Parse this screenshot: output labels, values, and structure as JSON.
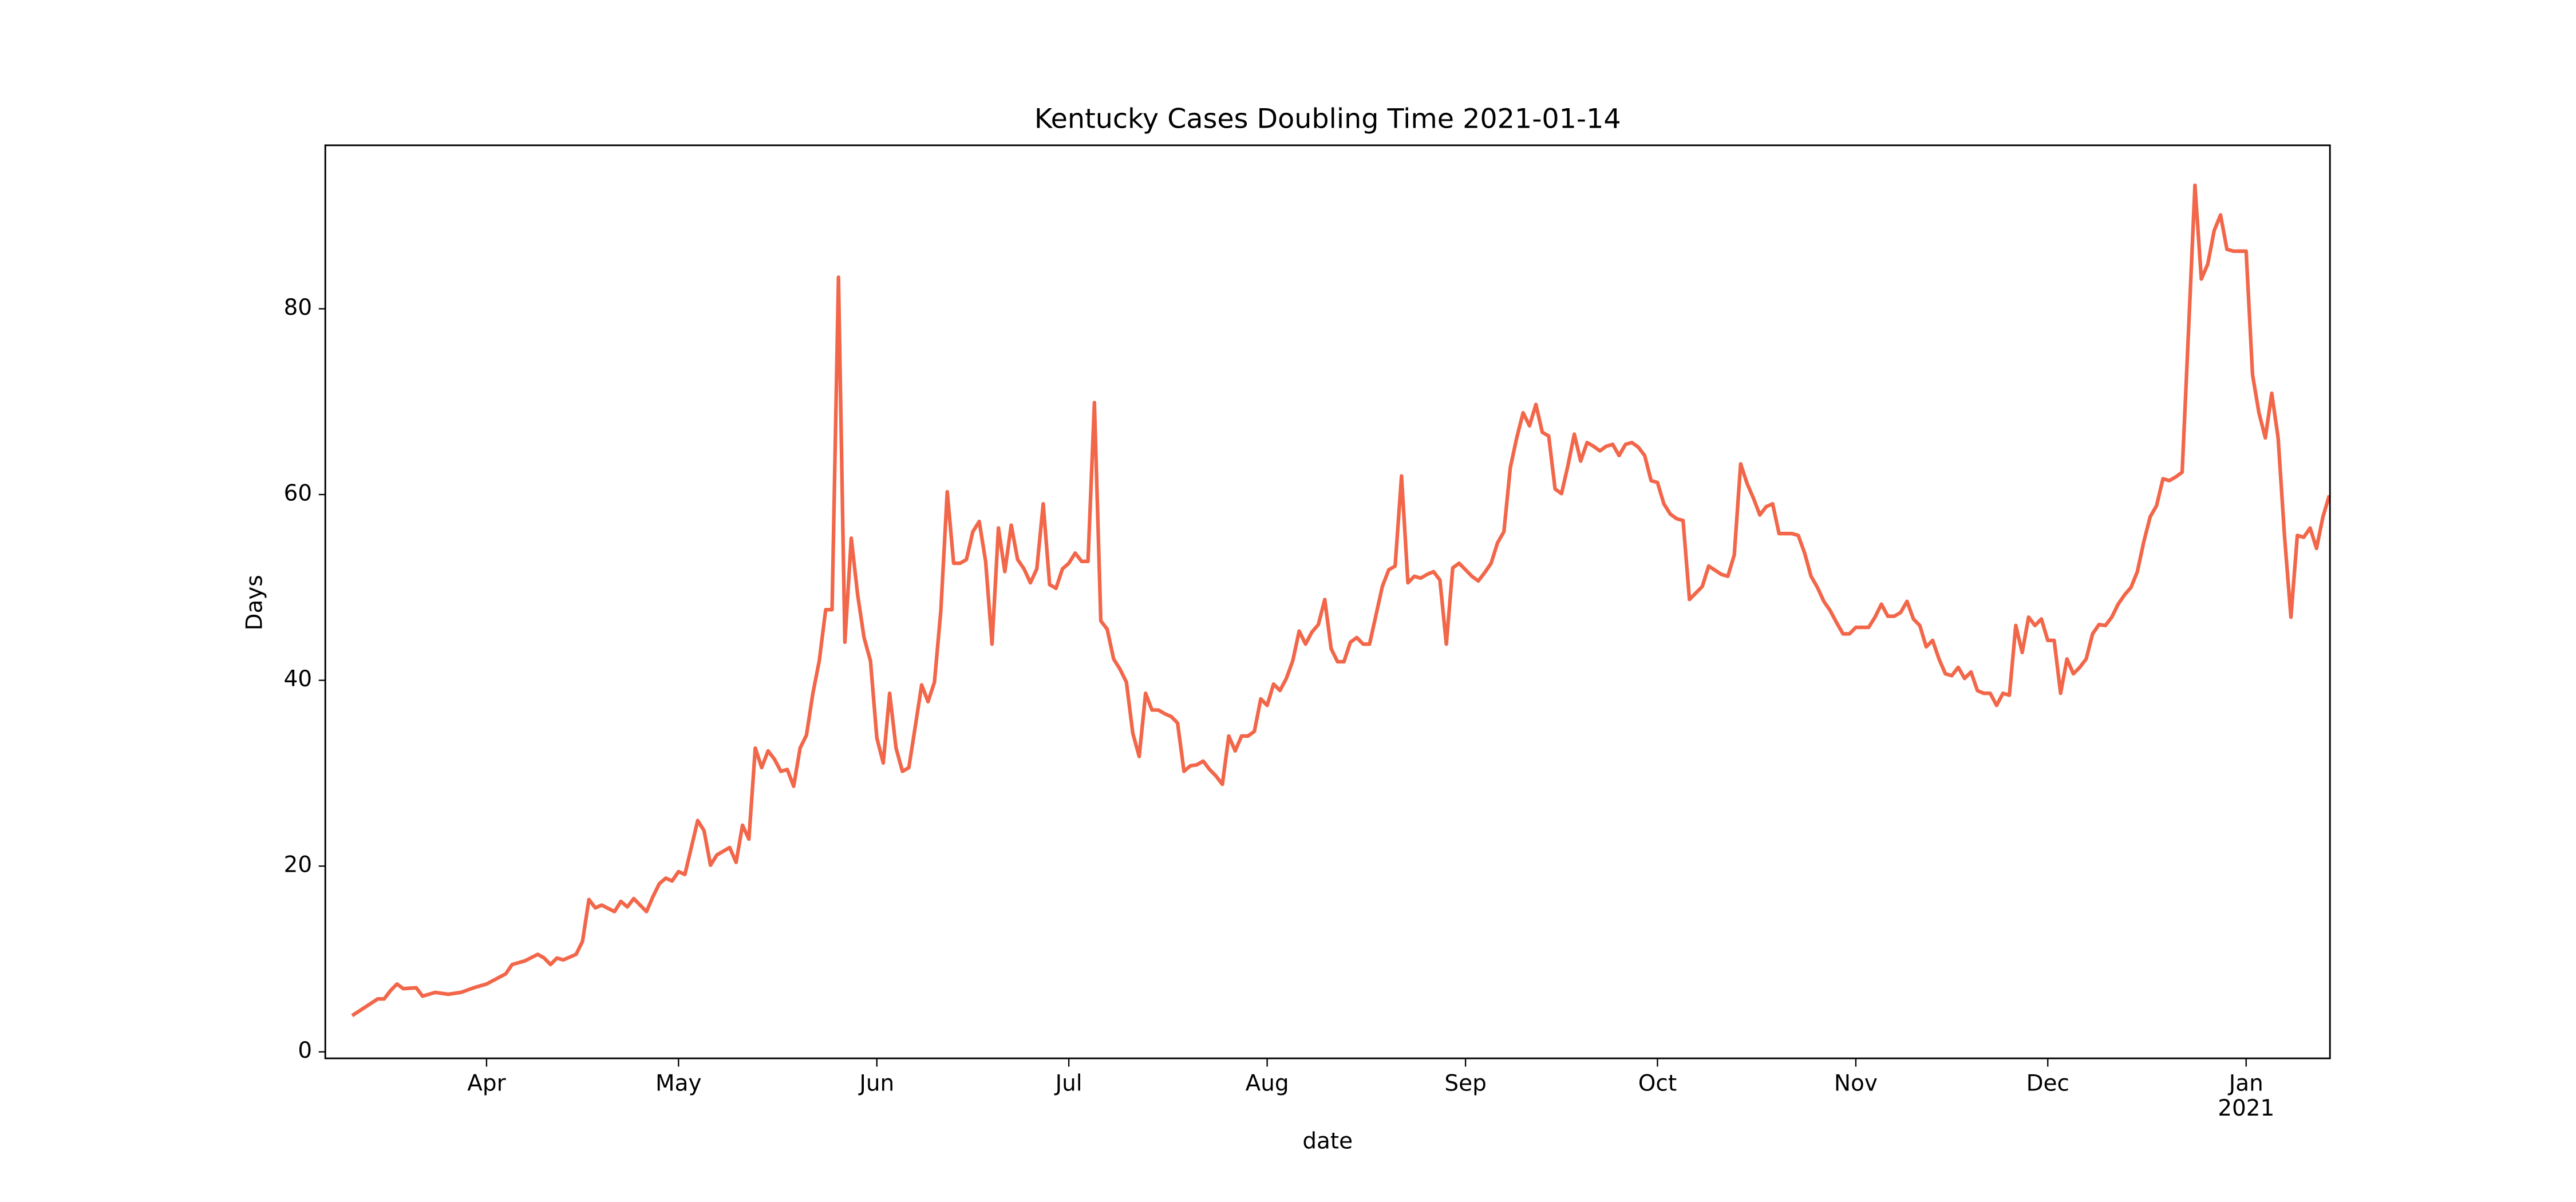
{
  "chart_data": {
    "type": "line",
    "title": "Kentucky Cases Doubling Time 2021-01-14",
    "xlabel": "date",
    "ylabel": "Days",
    "color": "#f26649",
    "grid": false,
    "xlim": [
      5.8,
      319.1
    ],
    "ylim": [
      -0.7,
      97.6
    ],
    "xticks": [
      {
        "value": 31,
        "label": "Apr"
      },
      {
        "value": 61,
        "label": "May"
      },
      {
        "value": 92,
        "label": "Jun"
      },
      {
        "value": 122,
        "label": "Jul"
      },
      {
        "value": 153,
        "label": "Aug"
      },
      {
        "value": 184,
        "label": "Sep"
      },
      {
        "value": 214,
        "label": "Oct"
      },
      {
        "value": 245,
        "label": "Nov"
      },
      {
        "value": 275,
        "label": "Dec"
      },
      {
        "value": 306,
        "label": "Jan"
      }
    ],
    "x_offset_label": "2021",
    "yticks": [
      0,
      20,
      40,
      60,
      80
    ],
    "x": [
      10,
      12,
      14,
      15,
      16,
      17,
      18,
      20,
      21,
      23,
      25,
      27,
      29,
      31,
      34,
      35,
      37,
      39,
      40,
      41,
      42,
      43,
      45,
      46,
      47,
      48,
      49,
      51,
      52,
      53,
      54,
      56,
      57,
      58,
      59,
      60,
      61,
      62,
      64,
      65,
      66,
      67,
      69,
      70,
      71,
      72,
      73,
      74,
      75,
      76,
      77,
      78,
      79,
      80,
      81,
      82,
      83,
      84,
      85,
      86,
      87,
      88,
      89,
      90,
      91,
      92,
      93,
      94,
      95,
      96,
      97,
      98,
      99,
      100,
      101,
      102,
      103,
      104,
      105,
      106,
      107,
      108,
      109,
      110,
      111,
      112,
      113,
      114,
      115,
      116,
      117,
      118,
      119,
      120,
      121,
      122,
      123,
      124,
      125,
      126,
      127,
      128,
      129,
      130,
      131,
      132,
      133,
      134,
      135,
      136,
      137,
      138,
      139,
      140,
      141,
      142,
      143,
      144,
      145,
      146,
      147,
      148,
      149,
      150,
      151,
      152,
      153,
      154,
      155,
      156,
      157,
      158,
      159,
      160,
      161,
      162,
      163,
      164,
      165,
      166,
      167,
      168,
      169,
      171,
      172,
      173,
      174,
      175,
      176,
      177,
      178,
      179,
      180,
      181,
      182,
      183,
      184,
      185,
      186,
      187,
      188,
      189,
      190,
      191,
      192,
      193,
      194,
      195,
      196,
      197,
      198,
      199,
      200,
      201,
      202,
      203,
      204,
      205,
      206,
      207,
      208,
      209,
      210,
      211,
      212,
      213,
      214,
      215,
      216,
      217,
      218,
      219,
      220,
      221,
      222,
      224,
      225,
      226,
      227,
      228,
      229,
      230,
      231,
      232,
      233,
      234,
      235,
      236,
      237,
      238,
      239,
      240,
      241,
      242,
      243,
      244,
      245,
      247,
      248,
      249,
      250,
      251,
      252,
      253,
      254,
      255,
      256,
      257,
      258,
      259,
      260,
      261,
      262,
      263,
      264,
      265,
      266,
      267,
      268,
      269,
      270,
      271,
      272,
      273,
      274,
      275,
      276,
      277,
      278,
      279,
      280,
      281,
      282,
      283,
      284,
      285,
      286,
      287,
      288,
      289,
      290,
      291,
      292,
      293,
      294,
      295,
      296,
      297,
      298,
      299,
      300,
      301,
      302,
      303,
      304,
      306,
      307,
      308,
      309,
      310,
      311,
      312,
      313,
      314,
      315,
      316,
      317,
      318,
      319
    ],
    "values": [
      3.9,
      4.8,
      5.7,
      5.7,
      6.6,
      7.3,
      6.8,
      6.9,
      6.0,
      6.4,
      6.2,
      6.4,
      6.9,
      7.3,
      8.4,
      9.4,
      9.8,
      10.5,
      10.1,
      9.4,
      10.1,
      9.9,
      10.5,
      11.9,
      16.4,
      15.5,
      15.8,
      15.1,
      16.2,
      15.6,
      16.5,
      15.1,
      16.7,
      18.1,
      18.7,
      18.4,
      19.4,
      19.1,
      24.9,
      23.8,
      20.1,
      21.2,
      22.0,
      20.4,
      24.4,
      22.9,
      32.7,
      30.6,
      32.4,
      31.5,
      30.2,
      30.4,
      28.6,
      32.7,
      34.1,
      38.6,
      42.1,
      47.6,
      47.6,
      83.4,
      44.1,
      55.3,
      49.2,
      44.6,
      42.1,
      33.8,
      31.1,
      38.6,
      32.7,
      30.2,
      30.6,
      35.0,
      39.5,
      37.7,
      39.8,
      47.5,
      60.3,
      52.6,
      52.6,
      53.0,
      56.0,
      57.1,
      52.8,
      43.9,
      56.4,
      51.7,
      56.7,
      53.0,
      52.0,
      50.5,
      52.0,
      59.0,
      50.3,
      49.9,
      52.0,
      52.6,
      53.7,
      52.8,
      52.8,
      69.9,
      46.4,
      45.5,
      42.3,
      41.2,
      39.8,
      34.3,
      31.8,
      38.6,
      36.8,
      36.8,
      36.4,
      36.1,
      35.4,
      30.2,
      30.8,
      30.9,
      31.3,
      30.4,
      29.7,
      28.8,
      34.0,
      32.4,
      34.0,
      34.0,
      34.5,
      38.0,
      37.3,
      39.6,
      38.9,
      40.2,
      42.1,
      45.3,
      43.9,
      45.2,
      46.0,
      48.7,
      43.4,
      42.0,
      42.0,
      44.1,
      44.6,
      43.9,
      43.9,
      50.1,
      51.9,
      52.3,
      62.0,
      50.5,
      51.2,
      51.0,
      51.4,
      51.7,
      50.8,
      43.9,
      52.1,
      52.6,
      51.9,
      51.2,
      50.7,
      51.6,
      52.6,
      54.8,
      56.0,
      62.9,
      66.1,
      68.8,
      67.4,
      69.7,
      66.7,
      66.3,
      60.6,
      60.1,
      63.1,
      66.5,
      63.6,
      65.6,
      65.2,
      64.7,
      65.2,
      65.4,
      64.2,
      65.4,
      65.6,
      65.1,
      64.2,
      61.5,
      61.3,
      59.0,
      57.9,
      57.4,
      57.2,
      48.7,
      49.4,
      50.1,
      52.3,
      51.4,
      51.2,
      53.5,
      63.3,
      61.2,
      59.6,
      57.8,
      58.7,
      59.0,
      55.8,
      55.8,
      55.8,
      55.6,
      53.7,
      51.2,
      50.0,
      48.5,
      47.5,
      46.2,
      45.0,
      45.0,
      45.7,
      45.7,
      46.8,
      48.2,
      46.9,
      46.9,
      47.3,
      48.5,
      46.6,
      45.9,
      43.6,
      44.3,
      42.3,
      40.7,
      40.5,
      41.4,
      40.2,
      40.9,
      38.9,
      38.6,
      38.6,
      37.3,
      38.6,
      38.4,
      45.9,
      43.0,
      46.8,
      45.9,
      46.6,
      44.3,
      44.3,
      38.6,
      42.3,
      40.7,
      41.4,
      42.3,
      45.0,
      46.0,
      45.9,
      46.8,
      48.2,
      49.2,
      50.0,
      51.7,
      54.9,
      57.6,
      58.8,
      61.7,
      61.5,
      61.9,
      62.4,
      77.7,
      93.3,
      83.2,
      84.8,
      88.4,
      90.1,
      86.4,
      86.2,
      86.2,
      72.9,
      68.8,
      66.1,
      70.9,
      66.1,
      55.5,
      46.8,
      55.6,
      55.4,
      56.4,
      54.2,
      57.6,
      59.9
    ]
  }
}
